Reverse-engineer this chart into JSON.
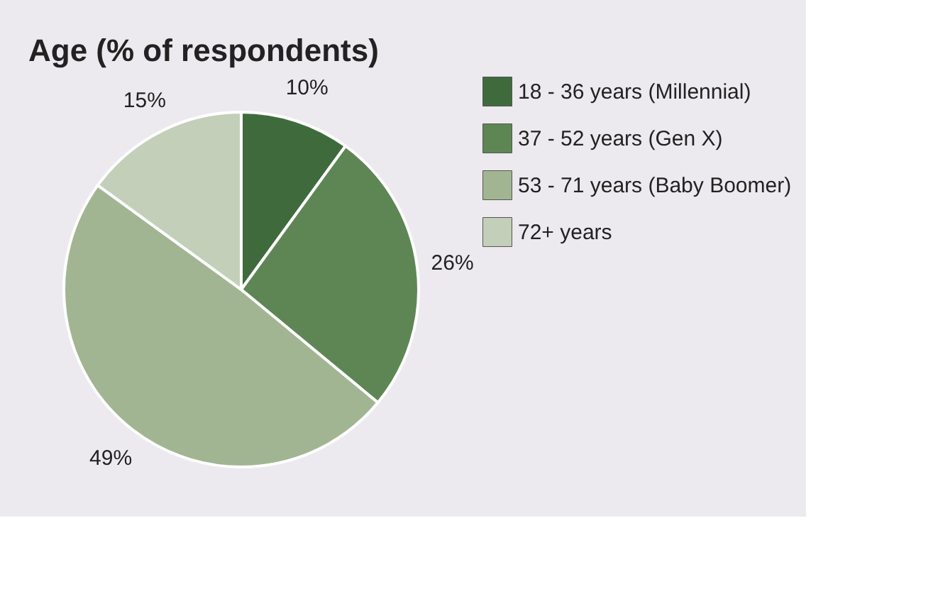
{
  "chart_data": {
    "type": "pie",
    "title": "Age (% of respondents)",
    "categories": [
      "18 - 36 years (Millennial)",
      "37 - 52 years (Gen X)",
      "53 - 71 years (Baby Boomer)",
      "72+ years"
    ],
    "values": [
      10,
      26,
      49,
      15
    ],
    "colors": [
      "#3f6b3c",
      "#5e8654",
      "#a2b592",
      "#c3cfb8"
    ],
    "value_labels": [
      "10%",
      "26%",
      "49%",
      "15%"
    ],
    "legend": "right"
  }
}
